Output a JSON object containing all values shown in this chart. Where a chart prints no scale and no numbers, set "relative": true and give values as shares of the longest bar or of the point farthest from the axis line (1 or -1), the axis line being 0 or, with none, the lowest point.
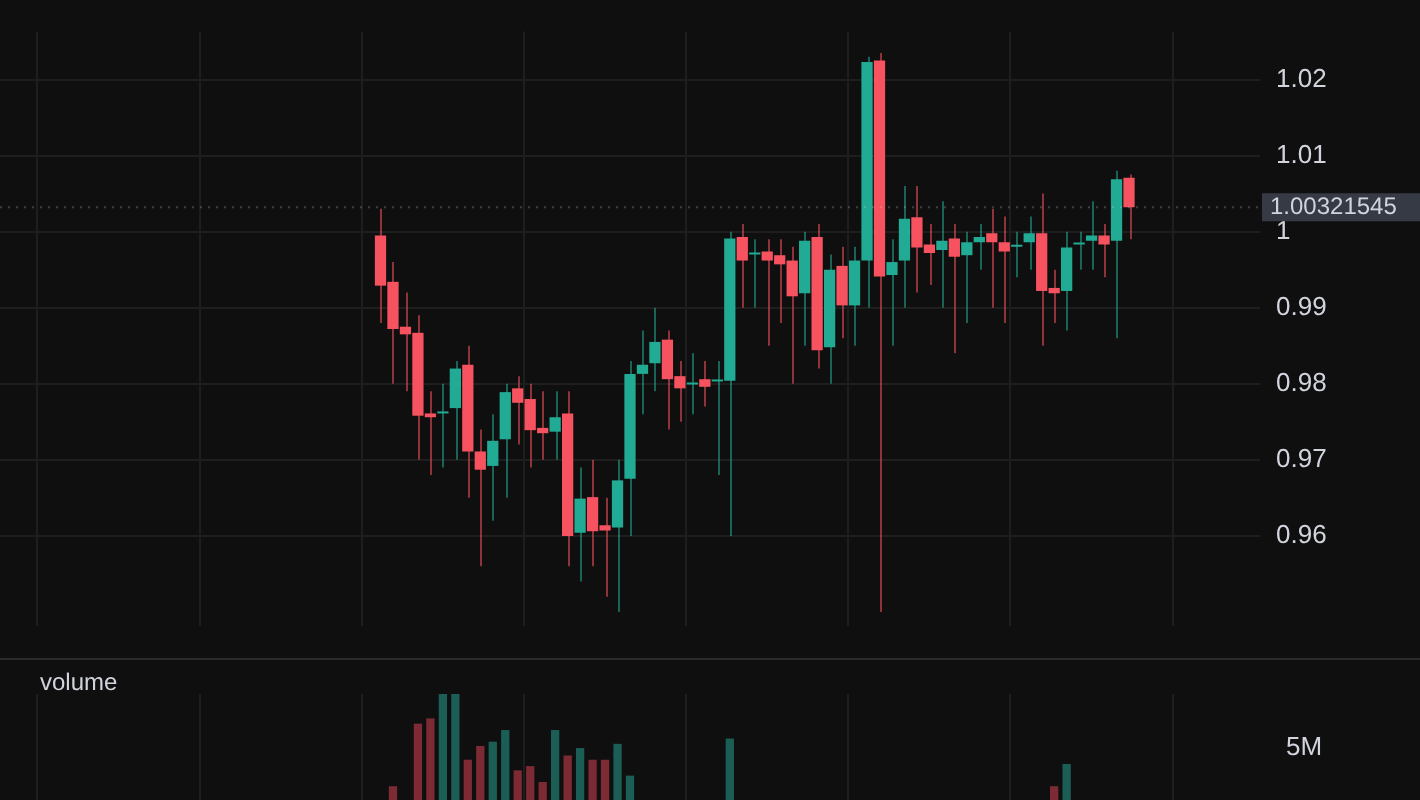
{
  "chart_data": [
    {
      "type": "candlestick",
      "categories": [
        null,
        null,
        null,
        null,
        null,
        null,
        null,
        null,
        null,
        null,
        null,
        null,
        null,
        null,
        null,
        null,
        null,
        null,
        null,
        null,
        null,
        null,
        null,
        null,
        null,
        null,
        null,
        null,
        null,
        null,
        null,
        null,
        null,
        null,
        null,
        null,
        null,
        null,
        null,
        null,
        null,
        null,
        null,
        null,
        null,
        null,
        null,
        null,
        null,
        null,
        null,
        null,
        null,
        null,
        null,
        null,
        null,
        null,
        null,
        null,
        null,
        null,
        null,
        null,
        null,
        null,
        null,
        null,
        null,
        null,
        null,
        null,
        null,
        null,
        null,
        null,
        null,
        null,
        null,
        null,
        null,
        null,
        null,
        null,
        null,
        null,
        null,
        null,
        null,
        null,
        null,
        null,
        null,
        null,
        null,
        null,
        null,
        null,
        null,
        null,
        null
      ],
      "ohlc": [
        null,
        null,
        null,
        null,
        null,
        null,
        null,
        null,
        null,
        null,
        null,
        null,
        null,
        null,
        null,
        null,
        null,
        null,
        null,
        null,
        null,
        null,
        null,
        null,
        null,
        null,
        null,
        null,
        null,
        null,
        [
          0.9995,
          1.003,
          0.988,
          0.9929
        ],
        [
          0.9934,
          0.996,
          0.98,
          0.9872
        ],
        [
          0.9875,
          0.992,
          0.979,
          0.9865
        ],
        [
          0.9867,
          0.989,
          0.97,
          0.9758
        ],
        [
          0.9761,
          0.979,
          0.968,
          0.9756
        ],
        [
          0.9761,
          0.98,
          0.969,
          0.9762
        ],
        [
          0.9768,
          0.983,
          0.97,
          0.982
        ],
        [
          0.9825,
          0.985,
          0.965,
          0.9711
        ],
        [
          0.9711,
          0.974,
          0.956,
          0.9687
        ],
        [
          0.9692,
          0.976,
          0.962,
          0.9725
        ],
        [
          0.9727,
          0.98,
          0.965,
          0.9789
        ],
        [
          0.9794,
          0.981,
          0.972,
          0.9775
        ],
        [
          0.978,
          0.98,
          0.969,
          0.9739
        ],
        [
          0.9742,
          0.979,
          0.97,
          0.9735
        ],
        [
          0.9737,
          0.979,
          0.97,
          0.9756
        ],
        [
          0.9761,
          0.979,
          0.956,
          0.96
        ],
        [
          0.9604,
          0.969,
          0.954,
          0.9649
        ],
        [
          0.9651,
          0.97,
          0.956,
          0.9606
        ],
        [
          0.9614,
          0.965,
          0.952,
          0.9607
        ],
        [
          0.9611,
          0.97,
          0.95,
          0.9673
        ],
        [
          0.9675,
          0.983,
          0.96,
          0.9813
        ],
        [
          0.9813,
          0.987,
          0.976,
          0.9825
        ],
        [
          0.9827,
          0.99,
          0.979,
          0.9855
        ],
        [
          0.9858,
          0.987,
          0.974,
          0.9806
        ],
        [
          0.981,
          0.983,
          0.975,
          0.9794
        ],
        [
          0.9799,
          0.984,
          0.976,
          0.9801
        ],
        [
          0.9806,
          0.983,
          0.977,
          0.9796
        ],
        [
          0.9803,
          0.983,
          0.968,
          0.9804
        ],
        [
          0.9804,
          1.0,
          0.96,
          0.9991
        ],
        [
          0.9993,
          1.001,
          0.99,
          0.9962
        ],
        [
          0.997,
          0.999,
          0.99,
          0.9972
        ],
        [
          0.9974,
          0.999,
          0.985,
          0.9962
        ],
        [
          0.9969,
          0.999,
          0.988,
          0.9957
        ],
        [
          0.9962,
          0.998,
          0.98,
          0.9915
        ],
        [
          0.9919,
          1.0,
          0.985,
          0.9988
        ],
        [
          0.9993,
          1.001,
          0.982,
          0.9844
        ],
        [
          0.9848,
          0.997,
          0.98,
          0.995
        ],
        [
          0.9955,
          0.998,
          0.986,
          0.9903
        ],
        [
          0.9903,
          0.998,
          0.985,
          0.9962
        ],
        [
          0.9962,
          1.023,
          0.99,
          1.0223
        ],
        [
          1.0225,
          1.0235,
          0.95,
          0.9941
        ],
        [
          0.9943,
          0.999,
          0.985,
          0.996
        ],
        [
          0.9962,
          1.006,
          0.99,
          1.0017
        ],
        [
          1.0019,
          1.006,
          0.992,
          0.9979
        ],
        [
          0.9983,
          1.001,
          0.993,
          0.9972
        ],
        [
          0.9976,
          1.004,
          0.99,
          0.9988
        ],
        [
          0.9991,
          1.001,
          0.984,
          0.9967
        ],
        [
          0.9969,
          1.0,
          0.988,
          0.9986
        ],
        [
          0.9986,
          1.001,
          0.995,
          0.9993
        ],
        [
          0.9998,
          1.003,
          0.99,
          0.9986
        ],
        [
          0.9986,
          1.002,
          0.988,
          0.9974
        ],
        [
          0.998,
          1.0,
          0.994,
          0.9982
        ],
        [
          0.9986,
          1.002,
          0.995,
          0.9998
        ],
        [
          0.9998,
          1.005,
          0.985,
          0.9922
        ],
        [
          0.9926,
          0.995,
          0.988,
          0.9919
        ],
        [
          0.9922,
          1.0,
          0.987,
          0.9979
        ],
        [
          0.9983,
          1.0,
          0.995,
          0.9984
        ],
        [
          0.9988,
          1.004,
          0.995,
          0.9995
        ],
        [
          0.9995,
          1.001,
          0.994,
          0.9983
        ],
        [
          0.9988,
          1.008,
          0.986,
          1.0069
        ],
        [
          1.0071,
          1.0075,
          0.999,
          1.0032
        ],
        null,
        null,
        null,
        null,
        null,
        null,
        null,
        null,
        null,
        null
      ],
      "colors": [
        null,
        null,
        null,
        null,
        null,
        null,
        null,
        null,
        null,
        null,
        null,
        null,
        null,
        null,
        null,
        null,
        null,
        null,
        null,
        null,
        null,
        null,
        null,
        null,
        null,
        null,
        null,
        null,
        null,
        null,
        "#f7525f",
        "#f7525f",
        "#f7525f",
        "#f7525f",
        "#f7525f",
        "#22ab94",
        "#22ab94",
        "#f7525f",
        "#f7525f",
        "#22ab94",
        "#22ab94",
        "#f7525f",
        "#f7525f",
        "#f7525f",
        "#22ab94",
        "#f7525f",
        "#22ab94",
        "#f7525f",
        "#f7525f",
        "#22ab94",
        "#22ab94",
        "#22ab94",
        "#22ab94",
        "#f7525f",
        "#f7525f",
        "#22ab94",
        "#f7525f",
        "#22ab94",
        "#22ab94",
        "#f7525f",
        "#22ab94",
        "#f7525f",
        "#f7525f",
        "#f7525f",
        "#22ab94",
        "#f7525f",
        "#22ab94",
        "#f7525f",
        "#22ab94",
        "#22ab94",
        "#f7525f",
        "#22ab94",
        "#22ab94",
        "#f7525f",
        "#f7525f",
        "#22ab94",
        "#f7525f",
        "#22ab94",
        "#22ab94",
        "#f7525f",
        "#f7525f",
        "#22ab94",
        "#22ab94",
        "#f7525f",
        "#f7525f",
        "#22ab94",
        "#22ab94",
        "#22ab94",
        "#f7525f",
        "#22ab94",
        "#f7525f",
        null,
        null,
        null,
        null,
        null,
        null,
        null,
        null,
        null,
        null
      ],
      "ylim": [
        0.9481,
        1.0263
      ],
      "yticks": [
        0.96,
        0.97,
        0.98,
        0.99,
        1,
        1.01,
        1.02
      ],
      "grid": true,
      "ref_lines": [
        {
          "axis": "y",
          "value": 1.00321545,
          "label": "1.00321545"
        }
      ]
    },
    {
      "type": "bar",
      "title": "volume",
      "relative": true,
      "grid": "x",
      "annotations": [
        "5M"
      ],
      "categories": [
        null,
        null,
        null,
        null,
        null,
        null,
        null,
        null,
        null,
        null,
        null,
        null,
        null,
        null,
        null,
        null,
        null,
        null,
        null,
        null,
        null,
        null,
        null,
        null,
        null,
        null,
        null,
        null,
        null,
        null,
        null,
        null,
        null,
        null,
        null,
        null,
        null,
        null,
        null,
        null,
        null,
        null,
        null,
        null,
        null,
        null,
        null,
        null,
        null,
        null,
        null,
        null,
        null,
        null,
        null,
        null,
        null,
        null,
        null,
        null,
        null,
        null,
        null,
        null,
        null,
        null,
        null,
        null,
        null,
        null,
        null,
        null,
        null,
        null,
        null,
        null,
        null,
        null,
        null,
        null,
        null,
        null,
        null,
        null,
        null,
        null,
        null,
        null,
        null,
        null,
        null,
        null,
        null,
        null,
        null,
        null,
        null,
        null,
        null,
        null,
        null
      ],
      "values": [
        null,
        null,
        null,
        null,
        null,
        null,
        null,
        null,
        null,
        null,
        null,
        null,
        null,
        null,
        null,
        null,
        null,
        null,
        null,
        null,
        null,
        null,
        null,
        null,
        null,
        null,
        null,
        null,
        null,
        null,
        null,
        0.13,
        null,
        0.72,
        0.77,
        1,
        1,
        0.38,
        0.51,
        0.55,
        0.66,
        0.28,
        0.32,
        0.17,
        0.66,
        0.42,
        0.49,
        0.38,
        0.38,
        0.53,
        0.23,
        null,
        null,
        null,
        null,
        null,
        null,
        null,
        0.58,
        null,
        null,
        null,
        null,
        null,
        null,
        null,
        null,
        null,
        null,
        null,
        null,
        null,
        null,
        null,
        null,
        null,
        null,
        null,
        null,
        null,
        null,
        null,
        null,
        null,
        0.13,
        0.34,
        null,
        null,
        null,
        null,
        null,
        null,
        null,
        null,
        null,
        null,
        null,
        null,
        null,
        null,
        null
      ],
      "colors": [
        null,
        null,
        null,
        null,
        null,
        null,
        null,
        null,
        null,
        null,
        null,
        null,
        null,
        null,
        null,
        null,
        null,
        null,
        null,
        null,
        null,
        null,
        null,
        null,
        null,
        null,
        null,
        null,
        null,
        null,
        null,
        "#7c2a33",
        null,
        "#7c2a33",
        "#7c2a33",
        "#1b5e55",
        "#1b5e55",
        "#7c2a33",
        "#7c2a33",
        "#1b5e55",
        "#1b5e55",
        "#7c2a33",
        "#7c2a33",
        "#7c2a33",
        "#1b5e55",
        "#7c2a33",
        "#1b5e55",
        "#7c2a33",
        "#7c2a33",
        "#1b5e55",
        "#1b5e55",
        null,
        null,
        null,
        null,
        null,
        null,
        null,
        "#1b5e55",
        null,
        null,
        null,
        null,
        null,
        null,
        null,
        null,
        null,
        null,
        null,
        null,
        null,
        null,
        null,
        null,
        null,
        null,
        null,
        null,
        null,
        null,
        null,
        null,
        null,
        "#7c2a33",
        "#1b5e55",
        null,
        null,
        null,
        null,
        null,
        null,
        null,
        null,
        null,
        null,
        null,
        null,
        null,
        null,
        null
      ]
    }
  ]
}
